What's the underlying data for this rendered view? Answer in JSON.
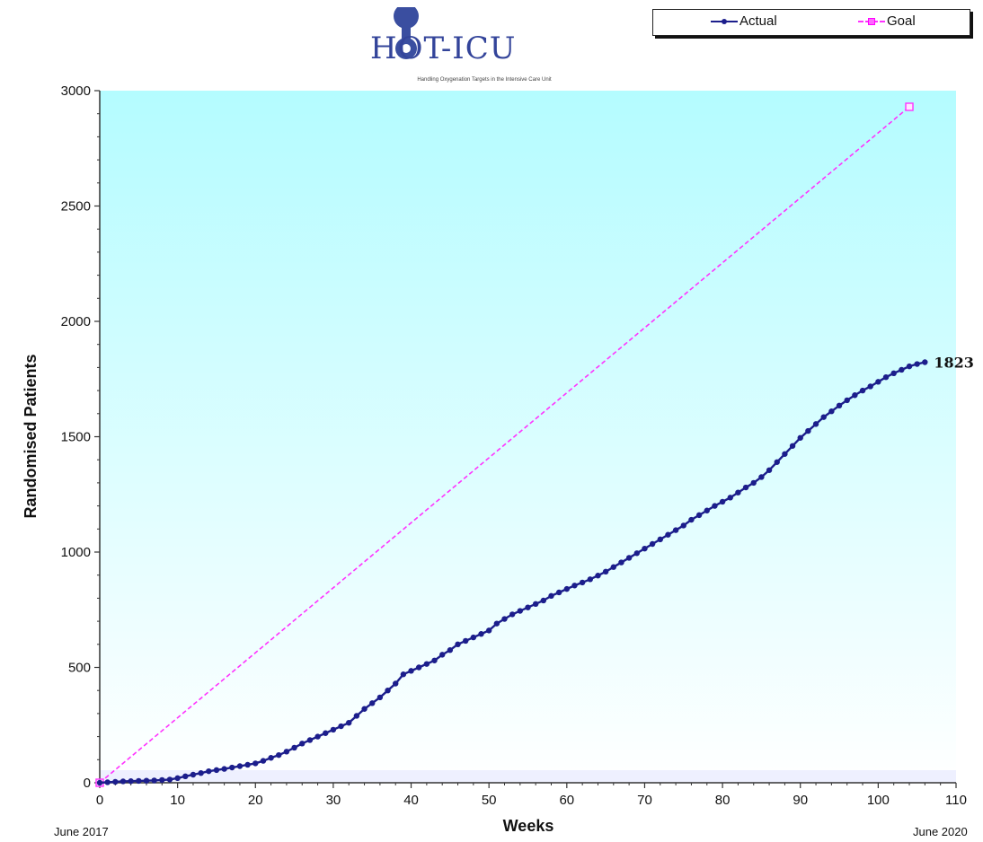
{
  "logo": {
    "text": "HOT-ICU",
    "subtitle": "Handling Oxygenation Targets in the Intensive Care Unit"
  },
  "legend": {
    "items": [
      {
        "label": "Actual",
        "color": "#1c1e8c"
      },
      {
        "label": "Goal",
        "color": "#ff33ff"
      }
    ]
  },
  "axis_notes": {
    "start": "June 2017",
    "end": "June 2020"
  },
  "chart_data": {
    "type": "line",
    "title": "",
    "xlabel": "Weeks",
    "ylabel": "Randomised Patients",
    "xlim": [
      0,
      110
    ],
    "ylim": [
      0,
      3000
    ],
    "x_ticks": [
      0,
      10,
      20,
      30,
      40,
      50,
      60,
      70,
      80,
      90,
      100,
      110
    ],
    "y_ticks": [
      0,
      500,
      1000,
      1500,
      2000,
      2500,
      3000
    ],
    "grid": false,
    "legend_position": "top-right",
    "background": "gradient cyan to white",
    "series": [
      {
        "name": "Actual",
        "color": "#1c1e8c",
        "marker": "circle",
        "x": [
          0,
          1,
          2,
          3,
          4,
          5,
          6,
          7,
          8,
          9,
          10,
          11,
          12,
          13,
          14,
          15,
          16,
          17,
          18,
          19,
          20,
          21,
          22,
          23,
          24,
          25,
          26,
          27,
          28,
          29,
          30,
          31,
          32,
          33,
          34,
          35,
          36,
          37,
          38,
          39,
          40,
          41,
          42,
          43,
          44,
          45,
          46,
          47,
          48,
          49,
          50,
          51,
          52,
          53,
          54,
          55,
          56,
          57,
          58,
          59,
          60,
          61,
          62,
          63,
          64,
          65,
          66,
          67,
          68,
          69,
          70,
          71,
          72,
          73,
          74,
          75,
          76,
          77,
          78,
          79,
          80,
          81,
          82,
          83,
          84,
          85,
          86,
          87,
          88,
          89,
          90,
          91,
          92,
          93,
          94,
          95,
          96,
          97,
          98,
          99,
          100,
          101,
          102,
          103,
          104,
          105,
          106
        ],
        "values": [
          0,
          2,
          4,
          6,
          7,
          8,
          9,
          10,
          12,
          14,
          20,
          28,
          35,
          42,
          50,
          55,
          60,
          66,
          72,
          78,
          84,
          95,
          108,
          120,
          135,
          152,
          170,
          185,
          200,
          215,
          230,
          245,
          260,
          290,
          320,
          345,
          370,
          400,
          430,
          470,
          485,
          500,
          515,
          530,
          555,
          575,
          600,
          615,
          630,
          645,
          660,
          690,
          710,
          730,
          745,
          760,
          775,
          790,
          810,
          825,
          840,
          855,
          868,
          882,
          898,
          915,
          935,
          955,
          975,
          995,
          1015,
          1035,
          1055,
          1075,
          1095,
          1115,
          1140,
          1160,
          1180,
          1200,
          1218,
          1236,
          1258,
          1280,
          1300,
          1325,
          1355,
          1390,
          1425,
          1460,
          1495,
          1525,
          1555,
          1585,
          1610,
          1635,
          1658,
          1680,
          1700,
          1718,
          1738,
          1758,
          1775,
          1790,
          1805,
          1815,
          1823
        ],
        "end_label": "1823"
      },
      {
        "name": "Goal",
        "color": "#ff33ff",
        "marker": "square",
        "line_style": "dashed",
        "x": [
          0,
          104
        ],
        "values": [
          0,
          2930
        ]
      }
    ]
  }
}
